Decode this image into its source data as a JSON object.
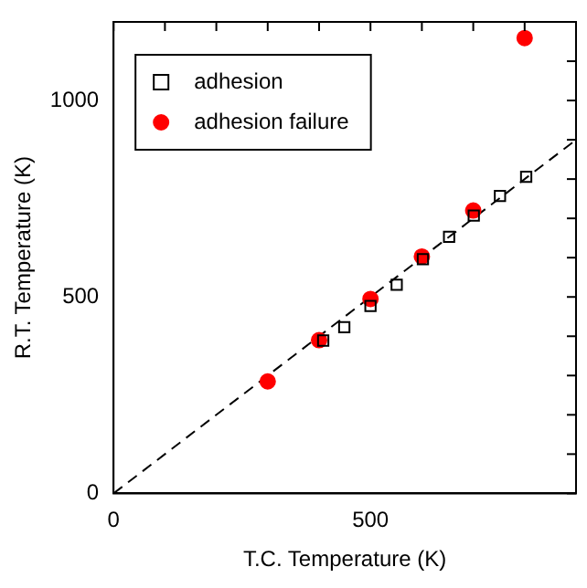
{
  "chart_data": {
    "type": "scatter",
    "xlabel": "T.C. Temperature (K)",
    "ylabel": "R.T. Temperature (K)",
    "xlim": [
      0,
      900
    ],
    "ylim": [
      0,
      1200
    ],
    "xticks": [
      0,
      {
        "value": 100,
        "label": null
      },
      {
        "value": 200,
        "label": null
      },
      {
        "value": 300,
        "label": null
      },
      {
        "value": 400,
        "label": null
      },
      500,
      {
        "value": 600,
        "label": null
      },
      {
        "value": 700,
        "label": null
      },
      {
        "value": 800,
        "label": null
      },
      {
        "value": 900,
        "label": null
      }
    ],
    "yticks": [
      0,
      {
        "value": 100,
        "label": null
      },
      {
        "value": 200,
        "label": null
      },
      {
        "value": 300,
        "label": null
      },
      {
        "value": 400,
        "label": null
      },
      500,
      {
        "value": 600,
        "label": null
      },
      {
        "value": 700,
        "label": null
      },
      {
        "value": 800,
        "label": null
      },
      {
        "value": 900,
        "label": null
      },
      1000,
      {
        "value": 1100,
        "label": null
      },
      {
        "value": 1200,
        "label": null
      }
    ],
    "grid": false,
    "legend": "top left",
    "series": [
      {
        "type": "line",
        "color": "#000000",
        "line_style": "dashed",
        "marker": "none",
        "x": [
          0,
          900
        ],
        "values": [
          0,
          900
        ]
      },
      {
        "name": "adhesion",
        "color": "#000000",
        "marker": "square",
        "x": [
          408,
          449,
          500,
          551,
          602,
          653,
          701,
          752,
          803
        ],
        "values": [
          389,
          423,
          477,
          531,
          596,
          653,
          707,
          757,
          806
        ]
      },
      {
        "name": "adhesion failure",
        "color": "#ff0000",
        "marker": "circle",
        "x": [
          300,
          400,
          500,
          600,
          700,
          800
        ],
        "values": [
          285,
          390,
          495,
          603,
          720,
          1159
        ]
      }
    ]
  }
}
